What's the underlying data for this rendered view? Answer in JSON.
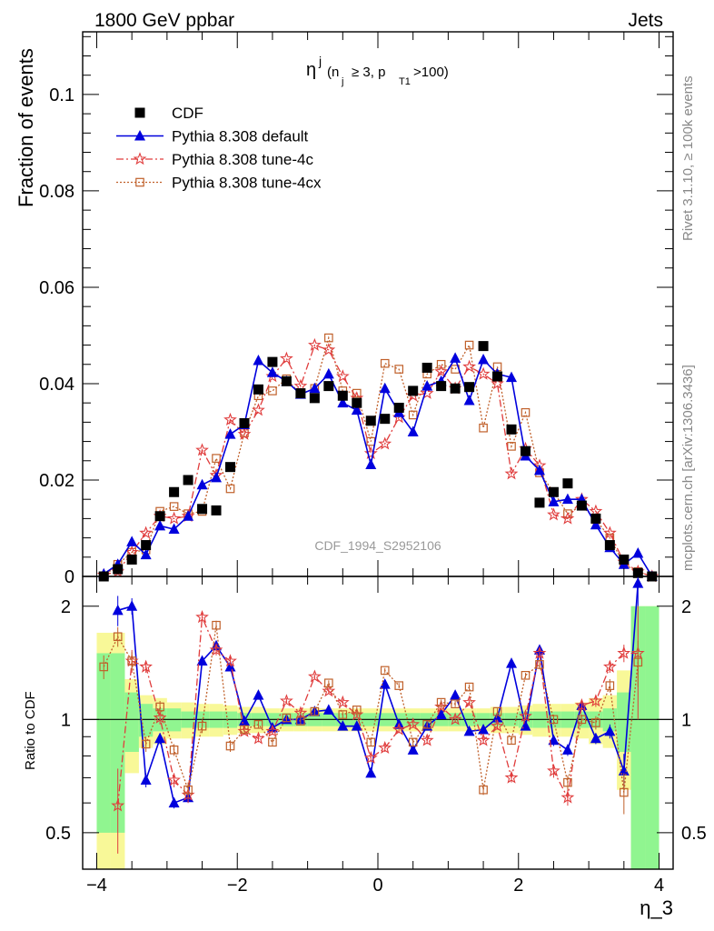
{
  "header": {
    "left": "1800 GeV ppbar",
    "right": "Jets"
  },
  "side_labels": {
    "rivet": "Rivet 3.1.10, ≥ 100k events",
    "source": "mcplots.cern.ch [arXiv:1306.3436]"
  },
  "watermark": "CDF_1994_S2952106",
  "colors": {
    "cdf": "#000000",
    "default": "#0000dd",
    "tune4c": "#e03c3c",
    "tune4cx": "#c0602a",
    "band_green": "#90f590",
    "band_yellow": "#f8f898"
  },
  "chart_data": [
    {
      "type": "scatter",
      "panel": "main",
      "title": "η j (n j ≥ 3, p T1 >100)",
      "title_parts": {
        "eta": "η",
        "j": "j",
        "open": "(n",
        "jsub": "j",
        "mid": "≥ 3, p",
        "T1": "T1",
        "close": ">100)"
      },
      "ylabel": "Fraction of events",
      "xlabel": "η_3",
      "xlim": [
        -4.2,
        4.2
      ],
      "ylim": [
        0,
        0.113
      ],
      "yticks": [
        0,
        0.02,
        0.04,
        0.06,
        0.08,
        0.1
      ],
      "ytick_labels": [
        "0",
        "0.02",
        "0.04",
        "0.06",
        "0.08",
        "0.1"
      ],
      "legend_placement": "top-left",
      "x": [
        -3.9,
        -3.7,
        -3.5,
        -3.3,
        -3.1,
        -2.9,
        -2.7,
        -2.5,
        -2.3,
        -2.1,
        -1.9,
        -1.7,
        -1.5,
        -1.3,
        -1.1,
        -0.9,
        -0.7,
        -0.5,
        -0.3,
        -0.1,
        0.1,
        0.3,
        0.5,
        0.7,
        0.9,
        1.1,
        1.3,
        1.5,
        1.7,
        1.9,
        2.1,
        2.3,
        2.5,
        2.7,
        2.9,
        3.1,
        3.3,
        3.5,
        3.7,
        3.9
      ],
      "series": [
        {
          "name": "CDF",
          "marker": "filled-square",
          "values": [
            0.0,
            0.0015,
            0.0035,
            0.0065,
            0.0125,
            0.0175,
            0.02,
            0.014,
            0.0137,
            0.0227,
            0.0318,
            0.0388,
            0.0445,
            0.0405,
            0.038,
            0.037,
            0.0395,
            0.0375,
            0.036,
            0.0323,
            0.0327,
            0.035,
            0.0385,
            0.0433,
            0.0395,
            0.039,
            0.0393,
            0.0478,
            0.0415,
            0.0305,
            0.026,
            0.0153,
            0.0175,
            0.0193,
            0.0147,
            0.012,
            0.0065,
            0.0035,
            0.0007,
            0.0
          ]
        },
        {
          "name": "Pythia 8.308 default",
          "marker": "filled-triangle",
          "values": [
            0.0005,
            0.0025,
            0.0072,
            0.0045,
            0.0105,
            0.0098,
            0.0125,
            0.019,
            0.0205,
            0.0295,
            0.0315,
            0.0448,
            0.0423,
            0.0405,
            0.0378,
            0.039,
            0.042,
            0.036,
            0.0345,
            0.0232,
            0.039,
            0.034,
            0.03,
            0.0395,
            0.0405,
            0.0453,
            0.0365,
            0.045,
            0.042,
            0.0413,
            0.025,
            0.022,
            0.0155,
            0.016,
            0.016,
            0.0107,
            0.006,
            0.0025,
            0.0048,
            0.0
          ]
        },
        {
          "name": "Pythia 8.308 tune-4c",
          "marker": "open-star",
          "values": [
            0.0003,
            0.001,
            0.005,
            0.009,
            0.0125,
            0.012,
            0.0125,
            0.0262,
            0.021,
            0.0325,
            0.0295,
            0.0345,
            0.0415,
            0.0452,
            0.0395,
            0.048,
            0.047,
            0.0415,
            0.037,
            0.0255,
            0.0275,
            0.033,
            0.0375,
            0.038,
            0.0425,
            0.039,
            0.0435,
            0.042,
            0.04,
            0.0213,
            0.0265,
            0.023,
            0.0128,
            0.012,
            0.016,
            0.0135,
            0.009,
            0.003,
            0.001,
            0.0
          ]
        },
        {
          "name": "Pythia 8.308 tune-4cx",
          "marker": "open-square",
          "values": [
            0.0,
            0.0025,
            0.005,
            0.0055,
            0.0135,
            0.0145,
            0.013,
            0.0135,
            0.0245,
            0.0182,
            0.0298,
            0.0375,
            0.0385,
            0.041,
            0.0378,
            0.039,
            0.0495,
            0.0385,
            0.038,
            0.028,
            0.0442,
            0.043,
            0.0335,
            0.042,
            0.044,
            0.043,
            0.048,
            0.0308,
            0.0435,
            0.027,
            0.034,
            0.0215,
            0.0175,
            0.013,
            0.0147,
            0.0118,
            0.008,
            0.0025,
            0.001,
            0.0
          ]
        }
      ]
    },
    {
      "type": "scatter",
      "panel": "ratio",
      "ylabel": "Ratio to CDF",
      "xlabel": "η_3",
      "yscale": "log",
      "xlim": [
        -4.2,
        4.2
      ],
      "ylim": [
        0.4,
        2.4
      ],
      "yticks": [
        0.5,
        1,
        2
      ],
      "ytick_labels": [
        "0.5",
        "1",
        "2"
      ],
      "xticks": [
        -4,
        -2,
        0,
        2,
        4
      ],
      "xtick_labels": [
        "−4",
        "−2",
        "0",
        "2",
        "4"
      ],
      "x": [
        -3.9,
        -3.7,
        -3.5,
        -3.3,
        -3.1,
        -2.9,
        -2.7,
        -2.5,
        -2.3,
        -2.1,
        -1.9,
        -1.7,
        -1.5,
        -1.3,
        -1.1,
        -0.9,
        -0.7,
        -0.5,
        -0.3,
        -0.1,
        0.1,
        0.3,
        0.5,
        0.7,
        0.9,
        1.1,
        1.3,
        1.5,
        1.7,
        1.9,
        2.1,
        2.3,
        2.5,
        2.7,
        2.9,
        3.1,
        3.3,
        3.5,
        3.7,
        3.9
      ],
      "band_green": [
        0.5,
        0.5,
        0.18,
        0.1,
        0.07,
        0.07,
        0.05,
        0.05,
        0.05,
        0.05,
        0.04,
        0.04,
        0.04,
        0.04,
        0.04,
        0.04,
        0.04,
        0.04,
        0.04,
        0.04,
        0.04,
        0.04,
        0.04,
        0.04,
        0.04,
        0.04,
        0.04,
        0.04,
        0.04,
        0.04,
        0.05,
        0.05,
        0.05,
        0.05,
        0.05,
        0.05,
        0.07,
        0.18,
        1.0,
        1.0
      ],
      "band_yellow": [
        0.7,
        0.7,
        0.28,
        0.16,
        0.14,
        0.11,
        0.11,
        0.1,
        0.1,
        0.09,
        0.08,
        0.08,
        0.07,
        0.07,
        0.07,
        0.07,
        0.07,
        0.07,
        0.07,
        0.07,
        0.07,
        0.07,
        0.07,
        0.07,
        0.07,
        0.07,
        0.07,
        0.07,
        0.08,
        0.08,
        0.09,
        0.1,
        0.1,
        0.1,
        0.11,
        0.14,
        0.16,
        0.35,
        1.0,
        1.0
      ],
      "series": [
        {
          "name": "Pythia 8.308 default",
          "marker": "filled-triangle",
          "values": [
            null,
            1.95,
            2.0,
            0.69,
            0.89,
            0.6,
            0.62,
            1.43,
            1.57,
            1.38,
            0.99,
            1.16,
            0.95,
            1.0,
            1.0,
            1.05,
            1.06,
            0.96,
            0.96,
            0.72,
            1.24,
            0.97,
            0.83,
            0.96,
            1.03,
            1.16,
            0.93,
            0.94,
            1.01,
            1.41,
            0.96,
            1.53,
            0.88,
            0.83,
            1.09,
            0.89,
            0.93,
            0.73,
            2.3,
            null
          ],
          "errors": [
            null,
            0.18,
            0.1,
            0.03,
            0.03,
            0.02,
            0.02,
            0.04,
            0.04,
            0.03,
            0.02,
            0.02,
            0.02,
            0.02,
            0.02,
            0.02,
            0.02,
            0.02,
            0.02,
            0.02,
            0.02,
            0.02,
            0.02,
            0.02,
            0.02,
            0.02,
            0.02,
            0.02,
            0.02,
            0.02,
            0.02,
            0.04,
            0.03,
            0.03,
            0.03,
            0.03,
            0.04,
            0.08,
            0.3,
            null
          ]
        },
        {
          "name": "Pythia 8.308 tune-4c",
          "marker": "open-star",
          "values": [
            null,
            0.59,
            1.43,
            1.38,
            1.01,
            0.69,
            0.63,
            1.87,
            1.53,
            1.43,
            0.93,
            0.89,
            0.93,
            1.12,
            1.04,
            1.3,
            1.19,
            1.11,
            1.03,
            0.79,
            0.84,
            0.94,
            0.97,
            0.88,
            1.08,
            1.0,
            1.11,
            0.88,
            0.96,
            0.7,
            1.02,
            1.5,
            0.73,
            0.62,
            1.09,
            1.12,
            1.38,
            1.5,
            1.5,
            null
          ],
          "errors": [
            null,
            0.15,
            0.1,
            0.05,
            0.04,
            0.03,
            0.03,
            0.05,
            0.05,
            0.04,
            0.02,
            0.02,
            0.02,
            0.02,
            0.02,
            0.02,
            0.02,
            0.02,
            0.02,
            0.02,
            0.02,
            0.02,
            0.02,
            0.02,
            0.02,
            0.02,
            0.02,
            0.02,
            0.02,
            0.02,
            0.02,
            0.04,
            0.03,
            0.03,
            0.03,
            0.04,
            0.05,
            0.08,
            0.5,
            null
          ]
        },
        {
          "name": "Pythia 8.308 tune-4cx",
          "marker": "open-square",
          "values": [
            1.38,
            1.66,
            1.43,
            0.86,
            1.08,
            0.83,
            0.65,
            0.96,
            1.78,
            0.85,
            0.94,
            0.97,
            0.87,
            1.01,
            0.99,
            1.05,
            1.25,
            1.03,
            1.06,
            0.87,
            1.35,
            1.23,
            0.87,
            0.97,
            1.11,
            1.1,
            1.22,
            0.65,
            1.05,
            0.88,
            1.31,
            1.4,
            1.0,
            0.68,
            1.0,
            0.98,
            1.23,
            0.64,
            1.42,
            null
          ],
          "errors": [
            0.1,
            0.1,
            0.08,
            0.04,
            0.04,
            0.03,
            0.03,
            0.04,
            0.05,
            0.03,
            0.02,
            0.02,
            0.02,
            0.02,
            0.02,
            0.02,
            0.02,
            0.02,
            0.02,
            0.02,
            0.02,
            0.02,
            0.02,
            0.02,
            0.02,
            0.02,
            0.02,
            0.02,
            0.02,
            0.02,
            0.02,
            0.04,
            0.03,
            0.03,
            0.03,
            0.04,
            0.05,
            0.08,
            0.2,
            null
          ]
        }
      ]
    }
  ]
}
